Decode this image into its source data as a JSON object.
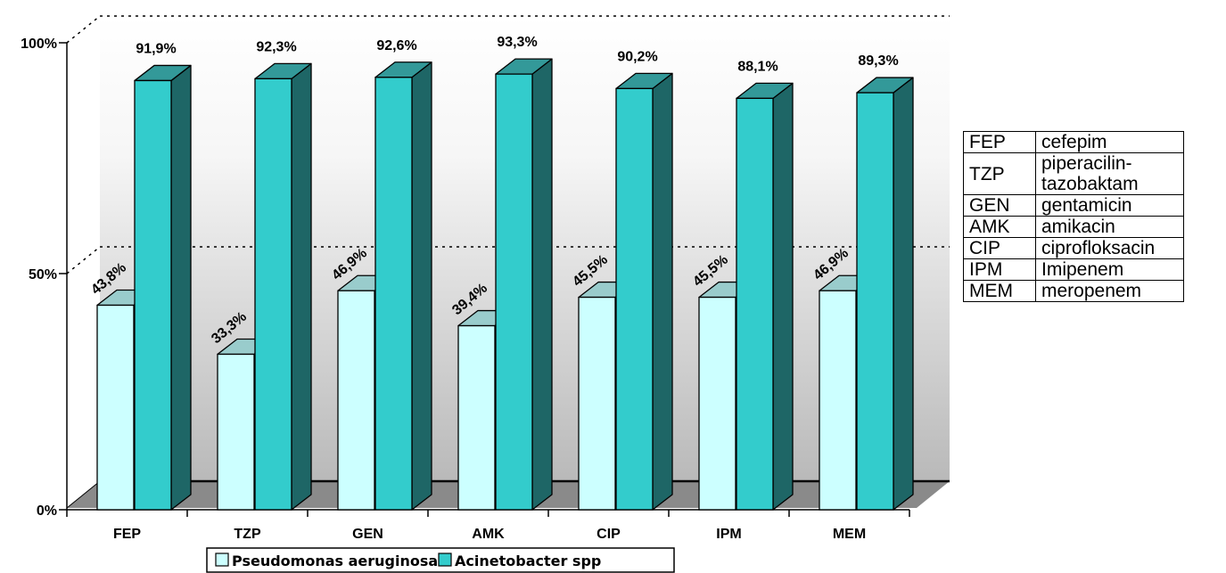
{
  "chart_data": {
    "type": "bar",
    "style": "3d-clustered-column",
    "categories": [
      "FEP",
      "TZP",
      "GEN",
      "AMK",
      "CIP",
      "IPM",
      "MEM"
    ],
    "series": [
      {
        "name": "Pseudomonas aeruginosa",
        "color": "#ccffff",
        "values": [
          43.8,
          33.3,
          46.9,
          39.4,
          45.5,
          45.5,
          46.9
        ],
        "labels": [
          "43,8%",
          "33,3%",
          "46,9%",
          "39,4%",
          "45,5%",
          "45,5%",
          "46,9%"
        ]
      },
      {
        "name": "Acinetobacter spp",
        "color": "#33cccc",
        "values": [
          91.9,
          92.3,
          92.6,
          93.3,
          90.2,
          88.1,
          89.3
        ],
        "labels": [
          "91,9%",
          "92,3%",
          "92,6%",
          "93,3%",
          "90,2%",
          "88,1%",
          "89,3%"
        ]
      }
    ],
    "yticks": [
      "0%",
      "50%",
      "100%"
    ],
    "ylim": [
      0,
      100
    ],
    "legend_position": "bottom",
    "grid": true
  },
  "abbreviations": [
    {
      "code": "FEP",
      "name": "cefepim"
    },
    {
      "code": "TZP",
      "name": "piperacilin-tazobaktam"
    },
    {
      "code": "GEN",
      "name": "gentamicin"
    },
    {
      "code": "AMK",
      "name": "amikacin"
    },
    {
      "code": "CIP",
      "name": "ciprofloksacin"
    },
    {
      "code": "IPM",
      "name": "Imipenem"
    },
    {
      "code": "MEM",
      "name": "meropenem"
    }
  ]
}
